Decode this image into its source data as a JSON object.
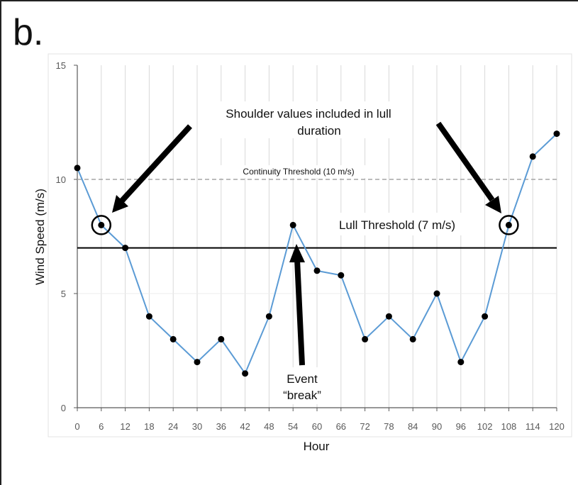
{
  "panel_label": "b.",
  "colors": {
    "series_line": "#5b9bd5",
    "marker": "#000000",
    "grid": "#d9d9d9",
    "continuity_line": "#a6a6a6",
    "lull_line": "#000000",
    "axis": "#595959"
  },
  "chart_data": {
    "type": "line",
    "title": "",
    "xlabel": "Hour",
    "ylabel": "Wind Speed (m/s)",
    "xlim": [
      0,
      120
    ],
    "ylim": [
      0,
      15
    ],
    "x_ticks": [
      0,
      6,
      12,
      18,
      24,
      30,
      36,
      42,
      48,
      54,
      60,
      66,
      72,
      78,
      84,
      90,
      96,
      102,
      108,
      114,
      120
    ],
    "y_ticks": [
      0,
      5,
      10,
      15
    ],
    "grid": "vertical",
    "series": [
      {
        "x": [
          0,
          6,
          12,
          18,
          24,
          30,
          36,
          42,
          48,
          54,
          60,
          66,
          72,
          78,
          84,
          90,
          96,
          102,
          108,
          114,
          120
        ],
        "values": [
          10.5,
          8,
          7,
          4,
          3,
          2,
          3,
          1.5,
          4,
          8,
          6,
          5.8,
          3,
          4,
          3,
          5,
          2,
          4,
          8,
          11,
          12
        ]
      }
    ],
    "reference_lines": [
      {
        "label": "Continuity Threshold (10 m/s)",
        "y": 10,
        "style": "dashed"
      },
      {
        "label": "Lull Threshold (7 m/s)",
        "y": 7,
        "style": "solid"
      }
    ],
    "annotations": {
      "shoulder_text_line1": "Shoulder values included in lull",
      "shoulder_text_line2": "duration",
      "event_text_line1": "Event",
      "event_text_line2": "“break”",
      "circled_points": [
        6,
        108
      ]
    }
  }
}
